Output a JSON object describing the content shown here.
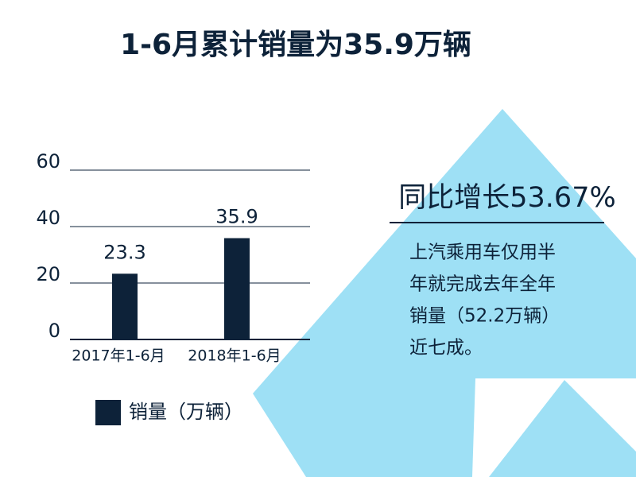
{
  "chart_data": {
    "type": "bar",
    "title": "1-6月累计销量为35.9万辆",
    "categories": [
      "2017年1-6月",
      "2018年1-6月"
    ],
    "series": [
      {
        "name": "销量（万辆）",
        "color": "#0d2239",
        "values": [
          23.3,
          35.9
        ]
      }
    ],
    "ylim": [
      0,
      60
    ],
    "yticks": [
      0,
      20,
      40,
      60
    ],
    "grid": true,
    "legend": "bottom",
    "annotations": {
      "headline": "同比增长53.67%",
      "body": [
        "上汽乘用车仅用半",
        "年就完成去年全年",
        "销量（52.2万辆）",
        "近七成。"
      ]
    }
  }
}
